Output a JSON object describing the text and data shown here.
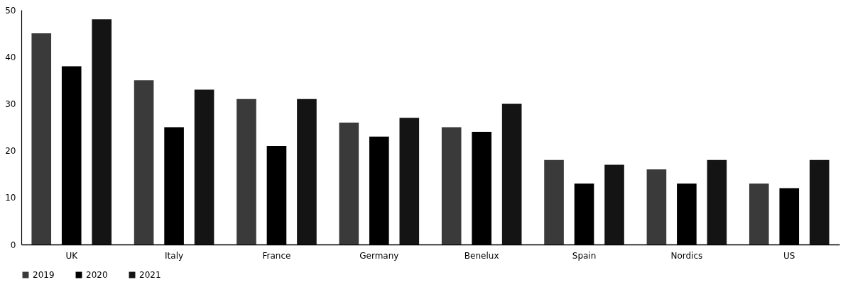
{
  "chart_data": {
    "type": "bar",
    "categories": [
      "UK",
      "Italy",
      "France",
      "Germany",
      "Benelux",
      "Spain",
      "Nordics",
      "US"
    ],
    "series": [
      {
        "name": "2019",
        "color": "#3a3a3a",
        "values": [
          45,
          35,
          31,
          26,
          25,
          18,
          16,
          13
        ]
      },
      {
        "name": "2020",
        "color": "#000000",
        "values": [
          38,
          25,
          21,
          23,
          24,
          13,
          13,
          12
        ]
      },
      {
        "name": "2021",
        "color": "#141414",
        "values": [
          48,
          33,
          31,
          27,
          30,
          17,
          18,
          18
        ]
      }
    ],
    "ylim": [
      0,
      50
    ],
    "yticks": [
      0,
      10,
      20,
      30,
      40,
      50
    ],
    "grid": false,
    "legend": "bottom left"
  }
}
